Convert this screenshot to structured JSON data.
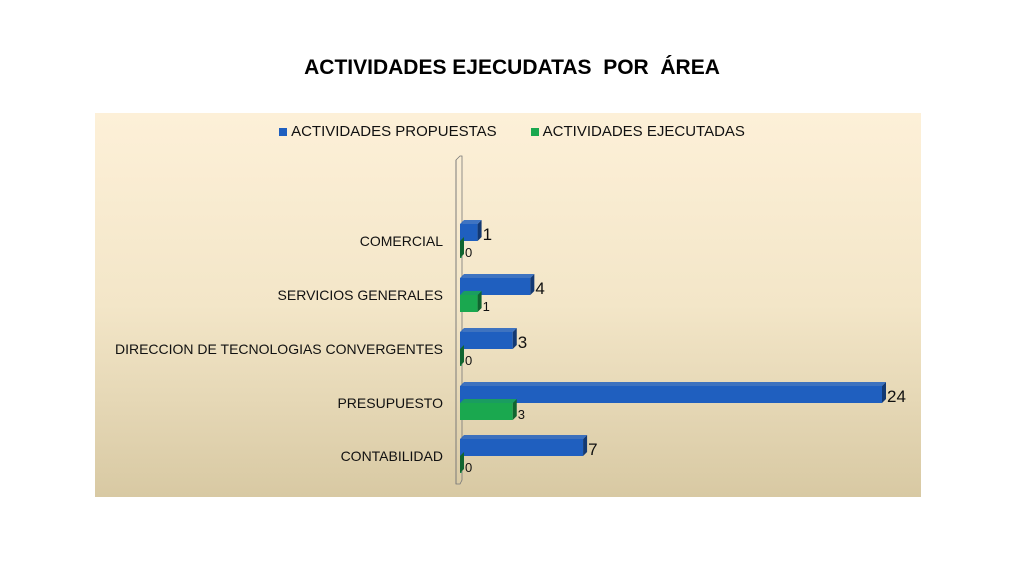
{
  "chart_data": {
    "type": "bar",
    "orientation": "horizontal",
    "title": "ACTIVIDADES EJECUDATAS  POR  ÁREA",
    "categories": [
      "COMERCIAL",
      "SERVICIOS GENERALES",
      "DIRECCION DE TECNOLOGIAS CONVERGENTES",
      "PRESUPUESTO",
      "CONTABILIDAD"
    ],
    "series": [
      {
        "name": "ACTIVIDADES PROPUESTAS",
        "values": [
          1,
          4,
          3,
          24,
          7
        ],
        "color": "#1f5fbf"
      },
      {
        "name": "ACTIVIDADES EJECUTADAS",
        "values": [
          0,
          1,
          0,
          3,
          0
        ],
        "color": "#1aa84f"
      }
    ],
    "xlim": [
      0,
      24
    ],
    "grid": false,
    "legend_position": "top",
    "data_labels": true
  }
}
